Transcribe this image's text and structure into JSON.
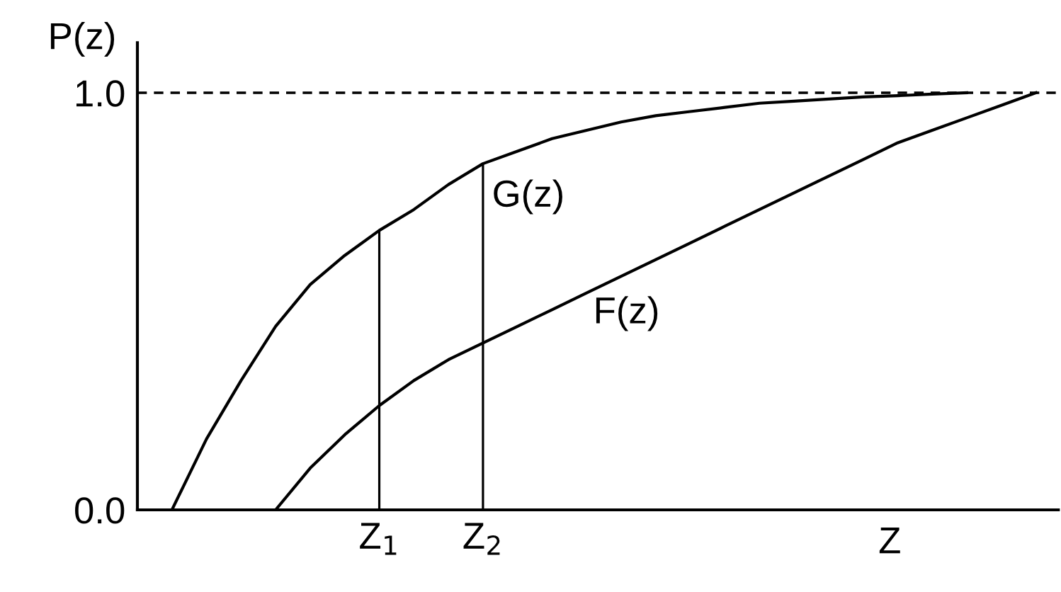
{
  "chart_data": {
    "type": "line",
    "xlabel": "Z",
    "ylabel": "P(z)",
    "categories": [
      null,
      null,
      null,
      null,
      null,
      null,
      null,
      "Z$_{1}$",
      null,
      null,
      "Z$_{2}$",
      null,
      null,
      null,
      null,
      null,
      null,
      null,
      null,
      null,
      null,
      null,
      null,
      null,
      null,
      null,
      null
    ],
    "ylim": [
      0,
      1.12
    ],
    "yticks": [
      {
        "value": 0,
        "label": "0.0"
      },
      {
        "value": 1,
        "label": "1.0"
      }
    ],
    "series": [
      {
        "color": "#000000",
        "values": [
          null,
          0.0,
          0.17,
          0.31,
          0.44,
          0.54,
          0.61,
          0.67,
          0.72,
          0.78,
          0.83,
          0.86,
          0.89,
          0.91,
          0.93,
          0.945,
          0.955,
          0.965,
          0.975,
          0.98,
          0.985,
          0.99,
          0.993,
          0.997,
          1.0,
          null,
          null
        ]
      },
      {
        "color": "#000000",
        "values": [
          null,
          null,
          null,
          null,
          0.0,
          0.1,
          0.18,
          0.25,
          0.31,
          0.36,
          0.4,
          0.44,
          0.48,
          0.52,
          0.56,
          0.6,
          0.64,
          0.68,
          0.72,
          0.76,
          0.8,
          0.84,
          0.88,
          0.91,
          0.94,
          0.97,
          1.0
        ]
      },
      {
        "type": "bar",
        "color": "#000000",
        "values": [
          null,
          null,
          null,
          null,
          null,
          null,
          null,
          0.67,
          null,
          null,
          0.83,
          null,
          null,
          null,
          null,
          null,
          null,
          null,
          null,
          null,
          null,
          null,
          null,
          null,
          null,
          null,
          null
        ]
      }
    ],
    "ref_lines": [
      {
        "axis": "y",
        "value": 1,
        "color": "#000000",
        "line_style": "dashed"
      }
    ],
    "annotations": [
      "G(z)",
      "F(z)"
    ],
    "grid": false,
    "legend": false,
    "marker": "none",
    "line_style": "solid"
  }
}
